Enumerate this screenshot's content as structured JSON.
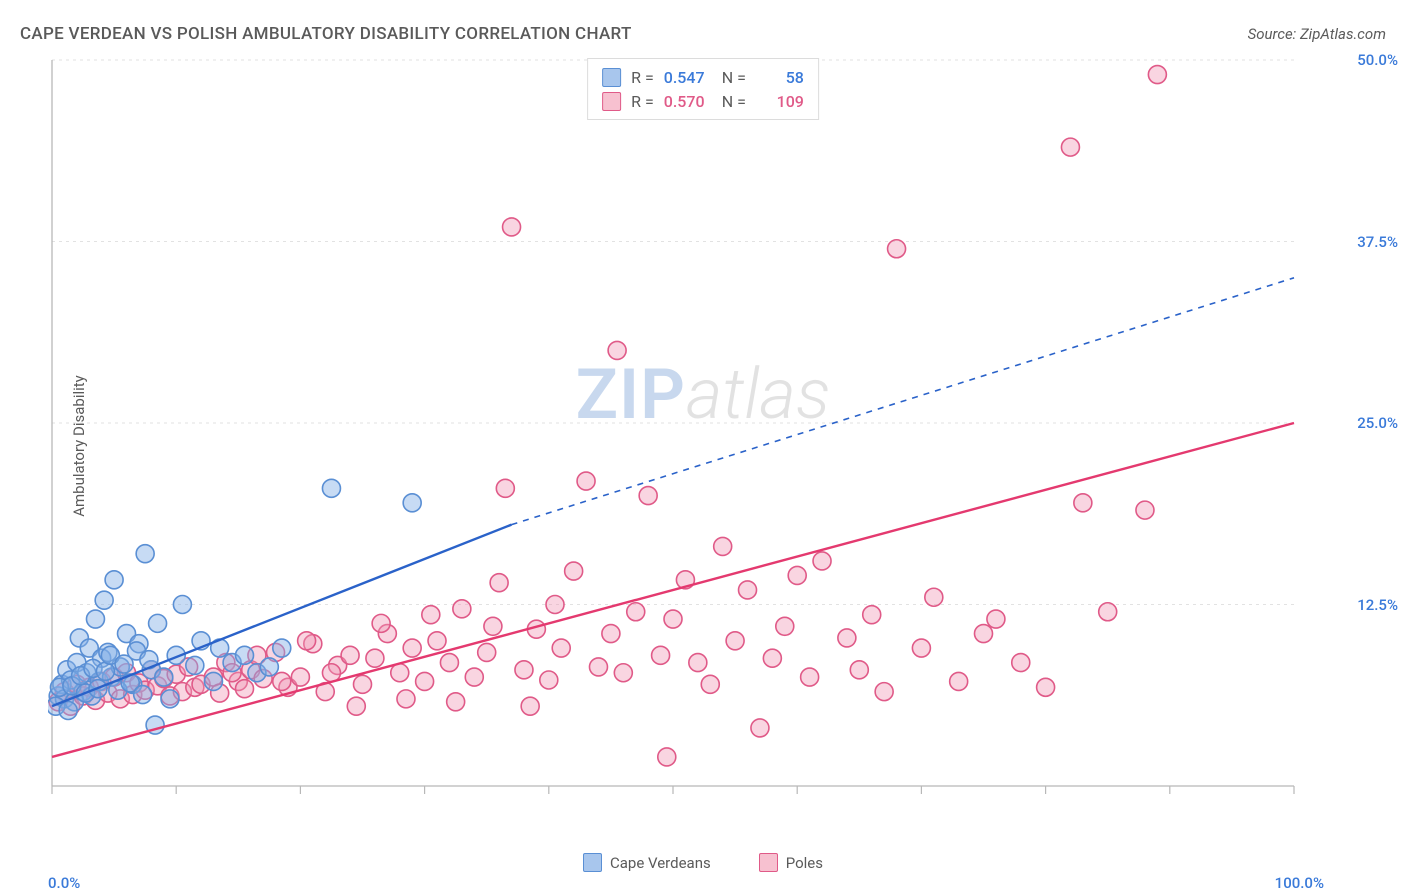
{
  "title": "CAPE VERDEAN VS POLISH AMBULATORY DISABILITY CORRELATION CHART",
  "source": "Source: ZipAtlas.com",
  "ylabel": "Ambulatory Disability",
  "watermark": {
    "zip": "ZIP",
    "atlas": "atlas"
  },
  "chart": {
    "type": "scatter",
    "background_color": "#ffffff",
    "grid_color": "#e2e2e2",
    "axis_color": "#b8b8b8",
    "tick_color": "#b8b8b8",
    "xlim": [
      0,
      100
    ],
    "ylim": [
      0,
      50
    ],
    "xtick_step": 10,
    "ytick_step": 12.5,
    "xaxis_labels": {
      "left": "0.0%",
      "right": "100.0%"
    },
    "yaxis_ticks": [
      {
        "v": 12.5,
        "label": "12.5%"
      },
      {
        "v": 25.0,
        "label": "25.0%"
      },
      {
        "v": 37.5,
        "label": "37.5%"
      },
      {
        "v": 50.0,
        "label": "50.0%"
      }
    ],
    "marker_radius": 9,
    "marker_stroke_width": 1.6,
    "line_width": 2.4,
    "series_legend": [
      {
        "label": "Cape Verdeans",
        "fill": "#a8c6ed",
        "stroke": "#5a8fd4"
      },
      {
        "label": "Poles",
        "fill": "#f7c1d0",
        "stroke": "#e05a88"
      }
    ],
    "stat_legend": [
      {
        "fill": "#a8c6ed",
        "stroke": "#5a8fd4",
        "r": "0.547",
        "n": "58",
        "val_color": "#3a7ad9"
      },
      {
        "fill": "#f7c1d0",
        "stroke": "#e05a88",
        "r": "0.570",
        "n": "109",
        "val_color": "#e05a88"
      }
    ],
    "regression_lines": [
      {
        "color": "#2a62c9",
        "solid": {
          "x1": 0,
          "y1": 5.5,
          "x2": 37,
          "y2": 18.0
        },
        "dashed": {
          "x1": 37,
          "y1": 18.0,
          "x2": 100,
          "y2": 35.0
        }
      },
      {
        "color": "#e4396f",
        "solid": {
          "x1": 0,
          "y1": 2.0,
          "x2": 100,
          "y2": 25.0
        },
        "dashed": null
      }
    ],
    "series": [
      {
        "name": "cape_verdeans",
        "fill": "rgba(130,175,230,0.45)",
        "stroke": "#5a8fd4",
        "points": [
          [
            0.5,
            6.2
          ],
          [
            0.8,
            7.0
          ],
          [
            1.0,
            6.0
          ],
          [
            1.2,
            8.0
          ],
          [
            1.5,
            7.3
          ],
          [
            1.8,
            5.8
          ],
          [
            2.0,
            8.5
          ],
          [
            2.2,
            10.2
          ],
          [
            2.5,
            6.5
          ],
          [
            2.8,
            7.8
          ],
          [
            3.0,
            9.5
          ],
          [
            3.2,
            6.2
          ],
          [
            3.5,
            11.5
          ],
          [
            3.8,
            7.2
          ],
          [
            4.0,
            8.8
          ],
          [
            4.2,
            12.8
          ],
          [
            4.5,
            9.2
          ],
          [
            4.8,
            7.5
          ],
          [
            5.0,
            14.2
          ],
          [
            5.5,
            8.2
          ],
          [
            6.0,
            10.5
          ],
          [
            6.5,
            7.0
          ],
          [
            7.0,
            9.8
          ],
          [
            7.5,
            16.0
          ],
          [
            8.0,
            8.0
          ],
          [
            8.5,
            11.2
          ],
          [
            9.0,
            7.5
          ],
          [
            10.0,
            9.0
          ],
          [
            10.5,
            12.5
          ],
          [
            11.5,
            8.3
          ],
          [
            12.0,
            10.0
          ],
          [
            13.0,
            7.2
          ],
          [
            13.5,
            9.5
          ],
          [
            14.5,
            8.5
          ],
          [
            15.5,
            9.0
          ],
          [
            16.5,
            7.8
          ],
          [
            17.5,
            8.2
          ],
          [
            18.5,
            9.5
          ],
          [
            22.5,
            20.5
          ],
          [
            29.0,
            19.5
          ],
          [
            0.3,
            5.5
          ],
          [
            0.6,
            6.8
          ],
          [
            1.3,
            5.2
          ],
          [
            1.6,
            6.9
          ],
          [
            2.3,
            7.6
          ],
          [
            2.7,
            6.4
          ],
          [
            3.3,
            8.1
          ],
          [
            3.7,
            6.7
          ],
          [
            4.3,
            7.9
          ],
          [
            4.7,
            9.0
          ],
          [
            5.3,
            6.6
          ],
          [
            5.8,
            8.4
          ],
          [
            6.3,
            7.1
          ],
          [
            6.8,
            9.3
          ],
          [
            7.3,
            6.3
          ],
          [
            7.8,
            8.7
          ],
          [
            8.3,
            4.2
          ],
          [
            9.5,
            6.0
          ]
        ]
      },
      {
        "name": "poles",
        "fill": "rgba(240,150,180,0.40)",
        "stroke": "#e05a88",
        "points": [
          [
            0.5,
            5.8
          ],
          [
            1.0,
            6.5
          ],
          [
            1.5,
            5.5
          ],
          [
            2.0,
            7.0
          ],
          [
            2.5,
            6.2
          ],
          [
            3.0,
            6.8
          ],
          [
            3.5,
            5.9
          ],
          [
            4.0,
            7.2
          ],
          [
            4.5,
            6.4
          ],
          [
            5.0,
            7.5
          ],
          [
            5.5,
            6.0
          ],
          [
            6.0,
            7.8
          ],
          [
            6.5,
            6.3
          ],
          [
            7.0,
            7.1
          ],
          [
            7.5,
            6.6
          ],
          [
            8.0,
            8.0
          ],
          [
            8.5,
            6.9
          ],
          [
            9.0,
            7.4
          ],
          [
            9.5,
            6.2
          ],
          [
            10.0,
            7.7
          ],
          [
            10.5,
            6.5
          ],
          [
            11.0,
            8.2
          ],
          [
            11.5,
            6.8
          ],
          [
            12.0,
            7.0
          ],
          [
            13.0,
            7.5
          ],
          [
            13.5,
            6.4
          ],
          [
            14.0,
            8.5
          ],
          [
            15.0,
            7.2
          ],
          [
            15.5,
            6.7
          ],
          [
            16.0,
            8.0
          ],
          [
            17.0,
            7.4
          ],
          [
            18.0,
            9.2
          ],
          [
            19.0,
            6.8
          ],
          [
            20.0,
            7.5
          ],
          [
            21.0,
            9.8
          ],
          [
            22.0,
            6.5
          ],
          [
            23.0,
            8.3
          ],
          [
            24.0,
            9.0
          ],
          [
            25.0,
            7.0
          ],
          [
            26.0,
            8.8
          ],
          [
            27.0,
            10.5
          ],
          [
            28.0,
            7.8
          ],
          [
            29.0,
            9.5
          ],
          [
            30.0,
            7.2
          ],
          [
            31.0,
            10.0
          ],
          [
            32.0,
            8.5
          ],
          [
            33.0,
            12.2
          ],
          [
            34.0,
            7.5
          ],
          [
            35.0,
            9.2
          ],
          [
            36.0,
            14.0
          ],
          [
            36.5,
            20.5
          ],
          [
            37.0,
            38.5
          ],
          [
            38.0,
            8.0
          ],
          [
            39.0,
            10.8
          ],
          [
            40.0,
            7.3
          ],
          [
            41.0,
            9.5
          ],
          [
            42.0,
            14.8
          ],
          [
            43.0,
            21.0
          ],
          [
            44.0,
            8.2
          ],
          [
            45.0,
            10.5
          ],
          [
            45.5,
            30.0
          ],
          [
            46.0,
            7.8
          ],
          [
            47.0,
            12.0
          ],
          [
            48.0,
            20.0
          ],
          [
            49.0,
            9.0
          ],
          [
            49.5,
            2.0
          ],
          [
            50.0,
            11.5
          ],
          [
            51.0,
            14.2
          ],
          [
            52.0,
            8.5
          ],
          [
            53.0,
            7.0
          ],
          [
            54.0,
            16.5
          ],
          [
            55.0,
            10.0
          ],
          [
            56.0,
            13.5
          ],
          [
            57.0,
            4.0
          ],
          [
            58.0,
            8.8
          ],
          [
            59.0,
            11.0
          ],
          [
            60.0,
            14.5
          ],
          [
            61.0,
            7.5
          ],
          [
            62.0,
            15.5
          ],
          [
            64.0,
            10.2
          ],
          [
            65.0,
            8.0
          ],
          [
            66.0,
            11.8
          ],
          [
            67.0,
            6.5
          ],
          [
            68.0,
            37.0
          ],
          [
            70.0,
            9.5
          ],
          [
            71.0,
            13.0
          ],
          [
            73.0,
            7.2
          ],
          [
            75.0,
            10.5
          ],
          [
            76.0,
            11.5
          ],
          [
            78.0,
            8.5
          ],
          [
            80.0,
            6.8
          ],
          [
            82.0,
            44.0
          ],
          [
            83.0,
            19.5
          ],
          [
            85.0,
            12.0
          ],
          [
            88.0,
            19.0
          ],
          [
            89.0,
            49.0
          ],
          [
            14.5,
            7.8
          ],
          [
            16.5,
            9.0
          ],
          [
            18.5,
            7.2
          ],
          [
            20.5,
            10.0
          ],
          [
            22.5,
            7.8
          ],
          [
            24.5,
            5.5
          ],
          [
            26.5,
            11.2
          ],
          [
            28.5,
            6.0
          ],
          [
            30.5,
            11.8
          ],
          [
            32.5,
            5.8
          ],
          [
            35.5,
            11.0
          ],
          [
            38.5,
            5.5
          ],
          [
            40.5,
            12.5
          ]
        ]
      }
    ]
  }
}
